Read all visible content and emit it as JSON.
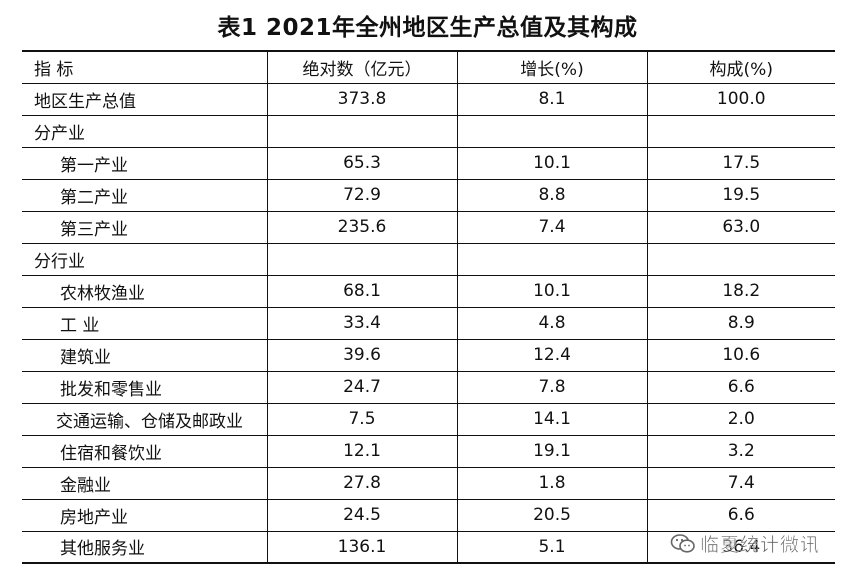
{
  "title": "表1  2021年全州地区生产总值及其构成",
  "headers": {
    "indicator": "指   标",
    "absolute": "绝对数（亿元）",
    "growth": "增长(%)",
    "composition": "构成(%)"
  },
  "rows": [
    {
      "label": "地区生产总值",
      "value": "373.8",
      "growth": "8.1",
      "share": "100.0",
      "level": 0
    },
    {
      "label": "分产业",
      "value": "",
      "growth": "",
      "share": "",
      "level": 0
    },
    {
      "label": "第一产业",
      "value": "65.3",
      "growth": "10.1",
      "share": "17.5",
      "level": 1
    },
    {
      "label": "第二产业",
      "value": "72.9",
      "growth": "8.8",
      "share": "19.5",
      "level": 1
    },
    {
      "label": "第三产业",
      "value": "235.6",
      "growth": "7.4",
      "share": "63.0",
      "level": 1
    },
    {
      "label": "分行业",
      "value": "",
      "growth": "",
      "share": "",
      "level": 0
    },
    {
      "label": "农林牧渔业",
      "value": "68.1",
      "growth": "10.1",
      "share": "18.2",
      "level": 1
    },
    {
      "label": "工  业",
      "value": "33.4",
      "growth": "4.8",
      "share": "8.9",
      "level": 1
    },
    {
      "label": "建筑业",
      "value": "39.6",
      "growth": "12.4",
      "share": "10.6",
      "level": 1
    },
    {
      "label": "批发和零售业",
      "value": "24.7",
      "growth": "7.8",
      "share": "6.6",
      "level": 1
    },
    {
      "label": "交通运输、仓储及邮政业",
      "value": "7.5",
      "growth": "14.1",
      "share": "2.0",
      "level": 2
    },
    {
      "label": "住宿和餐饮业",
      "value": "12.1",
      "growth": "19.1",
      "share": "3.2",
      "level": 1
    },
    {
      "label": "金融业",
      "value": "27.8",
      "growth": "1.8",
      "share": "7.4",
      "level": 1
    },
    {
      "label": "房地产业",
      "value": "24.5",
      "growth": "20.5",
      "share": "6.6",
      "level": 1
    },
    {
      "label": "其他服务业",
      "value": "136.1",
      "growth": "5.1",
      "share": "36.4",
      "level": 1
    }
  ],
  "watermark": {
    "icon": "wechat-icon",
    "text": "临夏统计微讯"
  }
}
